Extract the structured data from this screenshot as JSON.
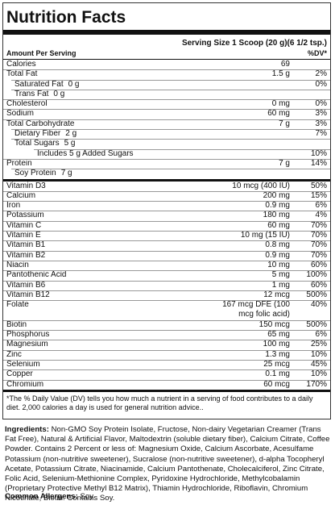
{
  "title": "Nutrition Facts",
  "serving": "Serving Size 1 Scoop (20 g)(6 1/2 tsp.)",
  "amount_header": "Amount Per Serving",
  "dv_header": "%DV*",
  "macros": [
    {
      "name": "Calories",
      "amount": "69"
    },
    {
      "name": "Total Fat",
      "amount": "1.5 g",
      "dv": "2%",
      "sub": [
        {
          "name": "Saturated Fat",
          "amount": "0 g",
          "dv": "0%"
        },
        {
          "name": "Trans Fat",
          "amount": "0 g"
        }
      ]
    },
    {
      "name": "Cholesterol",
      "amount": "0 mg",
      "dv": "0%"
    },
    {
      "name": "Sodium",
      "amount": "60 mg",
      "dv": "3%"
    },
    {
      "name": "Total Carbohydrate",
      "amount": "7 g",
      "dv": "3%",
      "sub": [
        {
          "name": "Dietary Fiber",
          "amount": "2 g",
          "dv": "7%"
        },
        {
          "name": "Total Sugars",
          "amount": "5 g",
          "sub": [
            {
              "name": "Includes 5 g Added Sugars",
              "dv": "10%"
            }
          ]
        }
      ]
    },
    {
      "name": "Protein",
      "amount": "7 g",
      "dv": "14%",
      "sub": [
        {
          "name": "Soy Protein",
          "amount": "7 g"
        }
      ]
    }
  ],
  "micros": [
    {
      "name": "Vitamin D3",
      "amount": "10 mcg (400 IU)",
      "dv": "50%"
    },
    {
      "name": "Calcium",
      "amount": "200 mg",
      "dv": "15%"
    },
    {
      "name": "Iron",
      "amount": "0.9 mg",
      "dv": "6%"
    },
    {
      "name": "Potassium",
      "amount": "180 mg",
      "dv": "4%"
    },
    {
      "name": "Vitamin C",
      "amount": "60 mg",
      "dv": "70%"
    },
    {
      "name": "Vitamin E",
      "amount": "10 mg (15 IU)",
      "dv": "70%"
    },
    {
      "name": "Vitamin B1",
      "amount": "0.8 mg",
      "dv": "70%"
    },
    {
      "name": "Vitamin B2",
      "amount": "0.9 mg",
      "dv": "70%"
    },
    {
      "name": "Niacin",
      "amount": "10 mg",
      "dv": "60%"
    },
    {
      "name": "Pantothenic Acid",
      "amount": "5 mg",
      "dv": "100%"
    },
    {
      "name": "Vitamin B6",
      "amount": "1 mg",
      "dv": "60%"
    },
    {
      "name": "Vitamin B12",
      "amount": "12 mcg",
      "dv": "500%"
    },
    {
      "name": "Folate",
      "amount": "167 mcg DFE (100 mcg folic acid)",
      "dv": "40%"
    },
    {
      "name": "Biotin",
      "amount": "150 mcg",
      "dv": "500%"
    },
    {
      "name": "Phosphorus",
      "amount": "65 mg",
      "dv": "6%"
    },
    {
      "name": "Magnesium",
      "amount": "100 mg",
      "dv": "25%"
    },
    {
      "name": "Zinc",
      "amount": "1.3 mg",
      "dv": "10%"
    },
    {
      "name": "Selenium",
      "amount": "25 mcg",
      "dv": "45%"
    },
    {
      "name": "Copper",
      "amount": "0.1 mg",
      "dv": "10%"
    },
    {
      "name": "Chromium",
      "amount": "60 mcg",
      "dv": "170%"
    }
  ],
  "footnote": "*The % Daily Value (DV) tells you how much a nutrient in a serving of food contributes to a daily diet. 2,000 calories a day is used for general nutrition advice..",
  "ingredients_label": "Ingredients:",
  "ingredients": "Non-GMO Soy Protein Isolate, Fructose, Non-dairy Vegetarian Creamer (Trans Fat Free), Natural & Artificial Flavor, Maltodextrin (soluble dietary fiber), Calcium Citrate, Coffee Powder. Contains 2 Percent or less of: Magnesium Oxide, Calcium Ascorbate, Acesulfame Potassium (non-nutritive sweetener), Sucralose (non-nutritive sweetener), d-alpha Tocopheryl Acetate, Potassium Citrate, Niacinamide, Calcium Pantothenate, Cholecalciferol, Zinc Citrate, Folic Acid, Selenium-Methionine Complex, Pyridoxine Hydrochloride, Methylcobalamin (Proprietary Protective Methyl B12 Matrix), Thiamin Hydrochloride, Riboflavin, Chromium Nicotinate, Biotin. Contains Soy.",
  "allergens_label": "Common Allergens:",
  "allergens": "Soy"
}
